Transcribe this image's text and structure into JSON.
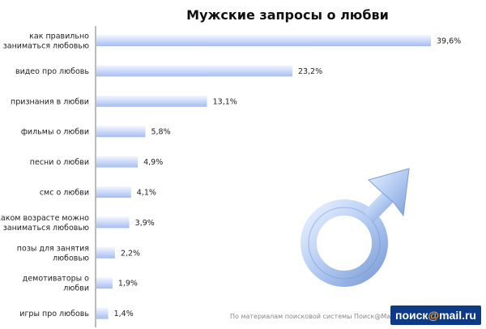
{
  "chart_data": {
    "type": "bar",
    "orientation": "horizontal",
    "title": "Мужские запросы  о любви",
    "categories": [
      [
        "как правильно",
        "заниматься любовью"
      ],
      [
        "видео про любовь"
      ],
      [
        "признания в любви"
      ],
      [
        "фильмы о любви"
      ],
      [
        "песни о любви"
      ],
      [
        "смс о любви"
      ],
      [
        "в каком возрасте можно",
        "заниматься любовью"
      ],
      [
        "позы для занятия",
        "любовью"
      ],
      [
        "демотиваторы о",
        "любви"
      ],
      [
        "игры про любовь"
      ]
    ],
    "values": [
      39.6,
      23.2,
      13.1,
      5.8,
      4.9,
      4.1,
      3.9,
      2.2,
      1.9,
      1.4
    ],
    "labels": [
      "39,6%",
      "23,2%",
      "13,1%",
      "5,8%",
      "4,9%",
      "4,1%",
      "3,9%",
      "2,2%",
      "1,9%",
      "1,4%"
    ],
    "xlim": [
      0,
      40
    ],
    "grid": false,
    "colors": {
      "bar_light": "#f2f6ff",
      "bar_dark": "#a9c0f5",
      "symbol": "#aac4f0"
    }
  },
  "footer": {
    "source": "По материалам поисковой системы Поиск@Mail.ru",
    "logo_left": "поиск",
    "logo_at": "@",
    "logo_right": "mail.ru"
  }
}
